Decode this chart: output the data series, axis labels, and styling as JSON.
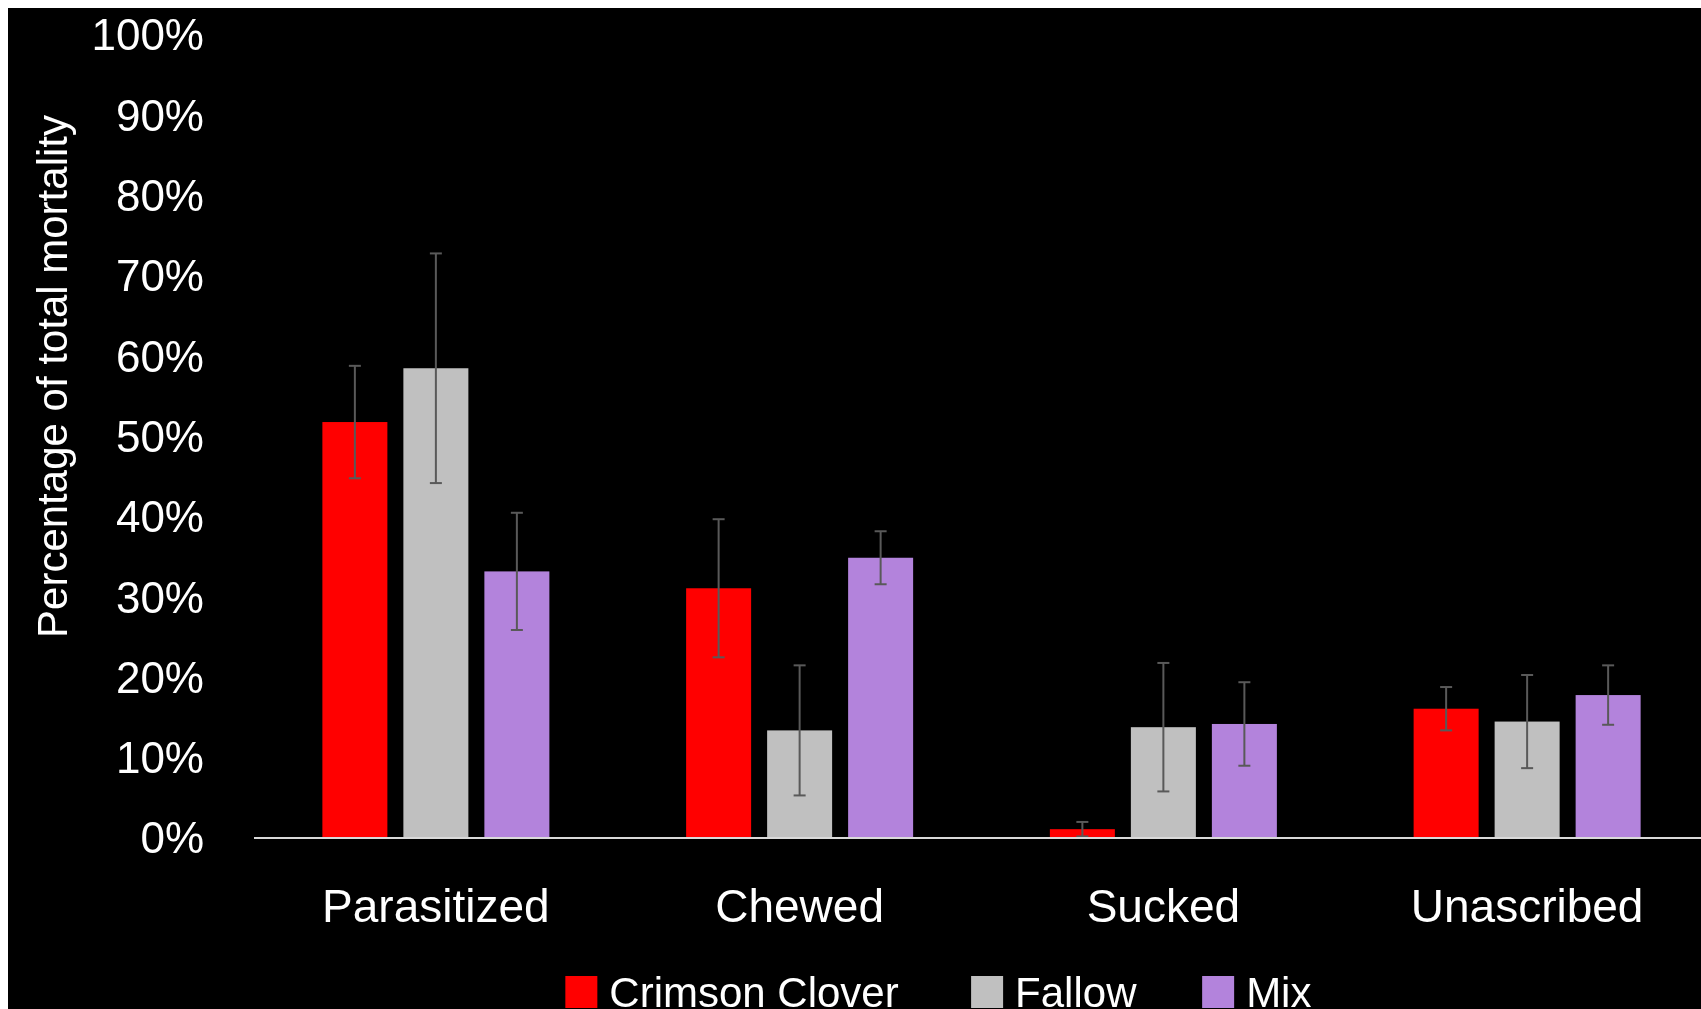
{
  "chart_data": {
    "type": "bar",
    "ylabel": "Percentage of total mortality",
    "categories": [
      "Parasitized",
      "Chewed",
      "Sucked",
      "Unascribed"
    ],
    "series": [
      {
        "name": "Crimson Clover",
        "color": "#ff0000",
        "values": [
          51.8,
          31.1,
          1.1,
          16.1
        ],
        "errors": [
          7,
          8.6,
          0.9,
          2.7
        ]
      },
      {
        "name": "Fallow",
        "color": "#c0c0c0",
        "values": [
          58.5,
          13.4,
          13.8,
          14.5
        ],
        "errors": [
          14.3,
          8.1,
          8,
          5.8
        ]
      },
      {
        "name": "Mix",
        "color": "#b383dc",
        "values": [
          33.2,
          34.9,
          14.2,
          17.8
        ],
        "errors": [
          7.3,
          3.3,
          5.2,
          3.7
        ]
      }
    ],
    "ylim": [
      0,
      100
    ],
    "yticks": [
      {
        "value": 0,
        "label": "0%"
      },
      {
        "value": 10,
        "label": "10%"
      },
      {
        "value": 20,
        "label": "20%"
      },
      {
        "value": 30,
        "label": "30%"
      },
      {
        "value": 40,
        "label": "40%"
      },
      {
        "value": 50,
        "label": "50%"
      },
      {
        "value": 60,
        "label": "60%"
      },
      {
        "value": 70,
        "label": "70%"
      },
      {
        "value": 80,
        "label": "80%"
      },
      {
        "value": 90,
        "label": "90%"
      },
      {
        "value": 100,
        "label": "100%"
      }
    ],
    "grid": false,
    "legend": "bottom"
  }
}
